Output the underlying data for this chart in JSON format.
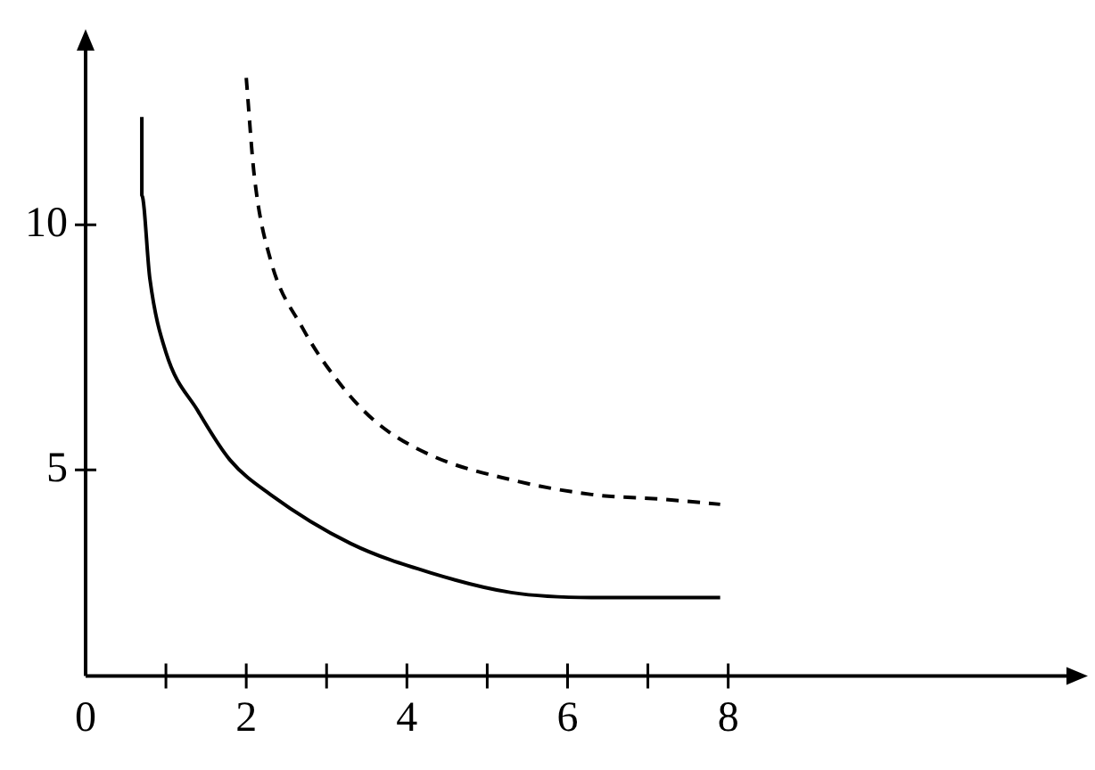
{
  "chart_data": {
    "type": "line",
    "xlim": [
      0,
      12.3
    ],
    "ylim": [
      0.8,
      13.7
    ],
    "xticks": [
      0,
      {
        "value": 1,
        "label": null
      },
      2,
      {
        "value": 3,
        "label": null
      },
      4,
      {
        "value": 5,
        "label": null
      },
      6,
      {
        "value": 7,
        "label": null
      },
      8
    ],
    "yticks": [
      5,
      10
    ],
    "grid": false,
    "legend": false,
    "marker": "none",
    "series": [
      {
        "color": "#000000",
        "line_style": "solid",
        "x": [
          0.7,
          0.7,
          0.8,
          1.0,
          1.4,
          1.8,
          2.3,
          3.3,
          4.3,
          5.3,
          6.3,
          7.2,
          7.9
        ],
        "values": [
          12.2,
          10.6,
          8.9,
          7.4,
          6.2,
          5.2,
          4.5,
          3.5,
          2.9,
          2.5,
          2.4,
          2.4,
          2.4
        ]
      },
      {
        "color": "#000000",
        "line_style": "dashed",
        "x": [
          2.0,
          2.1,
          2.3,
          2.7,
          3.1,
          3.6,
          4.3,
          5.3,
          6.3,
          7.2,
          7.9
        ],
        "values": [
          13.0,
          11.0,
          9.3,
          7.9,
          6.9,
          6.0,
          5.3,
          4.8,
          4.5,
          4.4,
          4.3
        ]
      }
    ]
  }
}
